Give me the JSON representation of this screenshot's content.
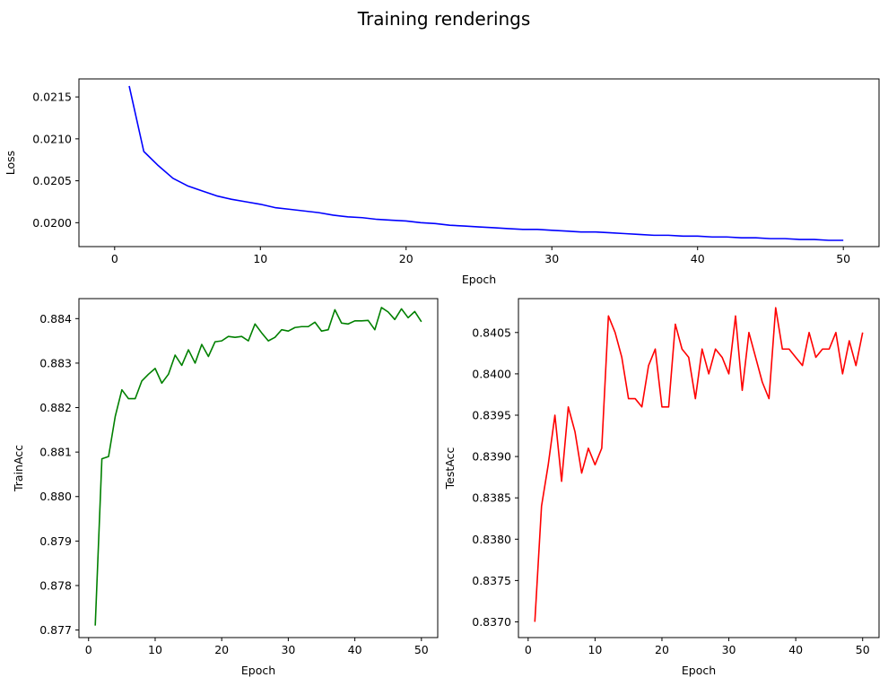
{
  "figure": {
    "title": "Training renderings"
  },
  "chart_data": [
    {
      "type": "line",
      "xlabel": "Epoch",
      "ylabel": "Loss",
      "xlim": [
        -2.45,
        52.45
      ],
      "ylim": [
        0.019715,
        0.021715
      ],
      "xticks": [
        0,
        10,
        20,
        30,
        40,
        50
      ],
      "yticks": [
        0.02,
        0.0205,
        0.021,
        0.0215
      ],
      "ytick_labels": [
        "0.0200",
        "0.0205",
        "0.0210",
        "0.0215"
      ],
      "grid": false,
      "color": "#0000ff",
      "series": [
        {
          "x": [
            1,
            2,
            3,
            4,
            5,
            6,
            7,
            8,
            9,
            10,
            11,
            12,
            13,
            14,
            15,
            16,
            17,
            18,
            19,
            20,
            21,
            22,
            23,
            24,
            25,
            26,
            27,
            28,
            29,
            30,
            31,
            32,
            33,
            34,
            35,
            36,
            37,
            38,
            39,
            40,
            41,
            42,
            43,
            44,
            45,
            46,
            47,
            48,
            49,
            50
          ],
          "values": [
            0.02163,
            0.02085,
            0.02068,
            0.02053,
            0.02044,
            0.02038,
            0.02032,
            0.02028,
            0.02025,
            0.02022,
            0.02018,
            0.02016,
            0.02014,
            0.02012,
            0.02009,
            0.02007,
            0.02006,
            0.02004,
            0.02003,
            0.02002,
            0.02,
            0.01999,
            0.01997,
            0.01996,
            0.01995,
            0.01994,
            0.01993,
            0.01992,
            0.01992,
            0.01991,
            0.0199,
            0.01989,
            0.01989,
            0.01988,
            0.01987,
            0.01986,
            0.01985,
            0.01985,
            0.01984,
            0.01984,
            0.01983,
            0.01983,
            0.01982,
            0.01982,
            0.01981,
            0.01981,
            0.0198,
            0.0198,
            0.01979,
            0.01979
          ]
        }
      ]
    },
    {
      "type": "line",
      "xlabel": "Epoch",
      "ylabel": "TrainAcc",
      "xlim": [
        -1.45,
        52.45
      ],
      "ylim": [
        0.87683,
        0.88445
      ],
      "xticks": [
        0,
        10,
        20,
        30,
        40,
        50
      ],
      "yticks": [
        0.877,
        0.878,
        0.879,
        0.88,
        0.881,
        0.882,
        0.883,
        0.884
      ],
      "ytick_labels": [
        "0.877",
        "0.878",
        "0.879",
        "0.880",
        "0.881",
        "0.882",
        "0.883",
        "0.884"
      ],
      "grid": false,
      "color": "#008000",
      "series": [
        {
          "x": [
            1,
            2,
            3,
            4,
            5,
            6,
            7,
            8,
            9,
            10,
            11,
            12,
            13,
            14,
            15,
            16,
            17,
            18,
            19,
            20,
            21,
            22,
            23,
            24,
            25,
            26,
            27,
            28,
            29,
            30,
            31,
            32,
            33,
            34,
            35,
            36,
            37,
            38,
            39,
            40,
            41,
            42,
            43,
            44,
            45,
            46,
            47,
            48,
            49,
            50
          ],
          "values": [
            0.8771,
            0.88085,
            0.8809,
            0.8818,
            0.8824,
            0.8822,
            0.8822,
            0.8826,
            0.88275,
            0.88288,
            0.88255,
            0.88275,
            0.88318,
            0.88295,
            0.8833,
            0.883,
            0.88342,
            0.88315,
            0.88348,
            0.8835,
            0.8836,
            0.88358,
            0.8836,
            0.8835,
            0.88388,
            0.88368,
            0.8835,
            0.88358,
            0.88375,
            0.88372,
            0.8838,
            0.88382,
            0.88382,
            0.88392,
            0.88372,
            0.88375,
            0.8842,
            0.8839,
            0.88388,
            0.88395,
            0.88395,
            0.88396,
            0.88375,
            0.88425,
            0.88415,
            0.88398,
            0.88422,
            0.88402,
            0.88416,
            0.88393
          ]
        }
      ]
    },
    {
      "type": "line",
      "xlabel": "Epoch",
      "ylabel": "TestAcc",
      "xlim": [
        -1.45,
        52.45
      ],
      "ylim": [
        0.83681,
        0.84091
      ],
      "xticks": [
        0,
        10,
        20,
        30,
        40,
        50
      ],
      "yticks": [
        0.837,
        0.8375,
        0.838,
        0.8385,
        0.839,
        0.8395,
        0.84,
        0.8405
      ],
      "ytick_labels": [
        "0.8370",
        "0.8375",
        "0.8380",
        "0.8385",
        "0.8390",
        "0.8395",
        "0.8400",
        "0.8405"
      ],
      "grid": false,
      "color": "#ff0000",
      "series": [
        {
          "x": [
            1,
            2,
            3,
            4,
            5,
            6,
            7,
            8,
            9,
            10,
            11,
            12,
            13,
            14,
            15,
            16,
            17,
            18,
            19,
            20,
            21,
            22,
            23,
            24,
            25,
            26,
            27,
            28,
            29,
            30,
            31,
            32,
            33,
            34,
            35,
            36,
            37,
            38,
            39,
            40,
            41,
            42,
            43,
            44,
            45,
            46,
            47,
            48,
            49,
            50
          ],
          "values": [
            0.837,
            0.8384,
            0.8389,
            0.8395,
            0.8387,
            0.8396,
            0.8393,
            0.8388,
            0.8391,
            0.8389,
            0.8391,
            0.8407,
            0.8405,
            0.8402,
            0.8397,
            0.8397,
            0.8396,
            0.8401,
            0.8403,
            0.8396,
            0.8396,
            0.8406,
            0.8403,
            0.8402,
            0.8397,
            0.8403,
            0.84,
            0.8403,
            0.8402,
            0.84,
            0.8407,
            0.8398,
            0.8405,
            0.8402,
            0.8399,
            0.8397,
            0.8408,
            0.8403,
            0.8403,
            0.8402,
            0.8401,
            0.8405,
            0.8402,
            0.8403,
            0.8403,
            0.8405,
            0.84,
            0.8404,
            0.8401,
            0.8405
          ]
        }
      ]
    }
  ]
}
